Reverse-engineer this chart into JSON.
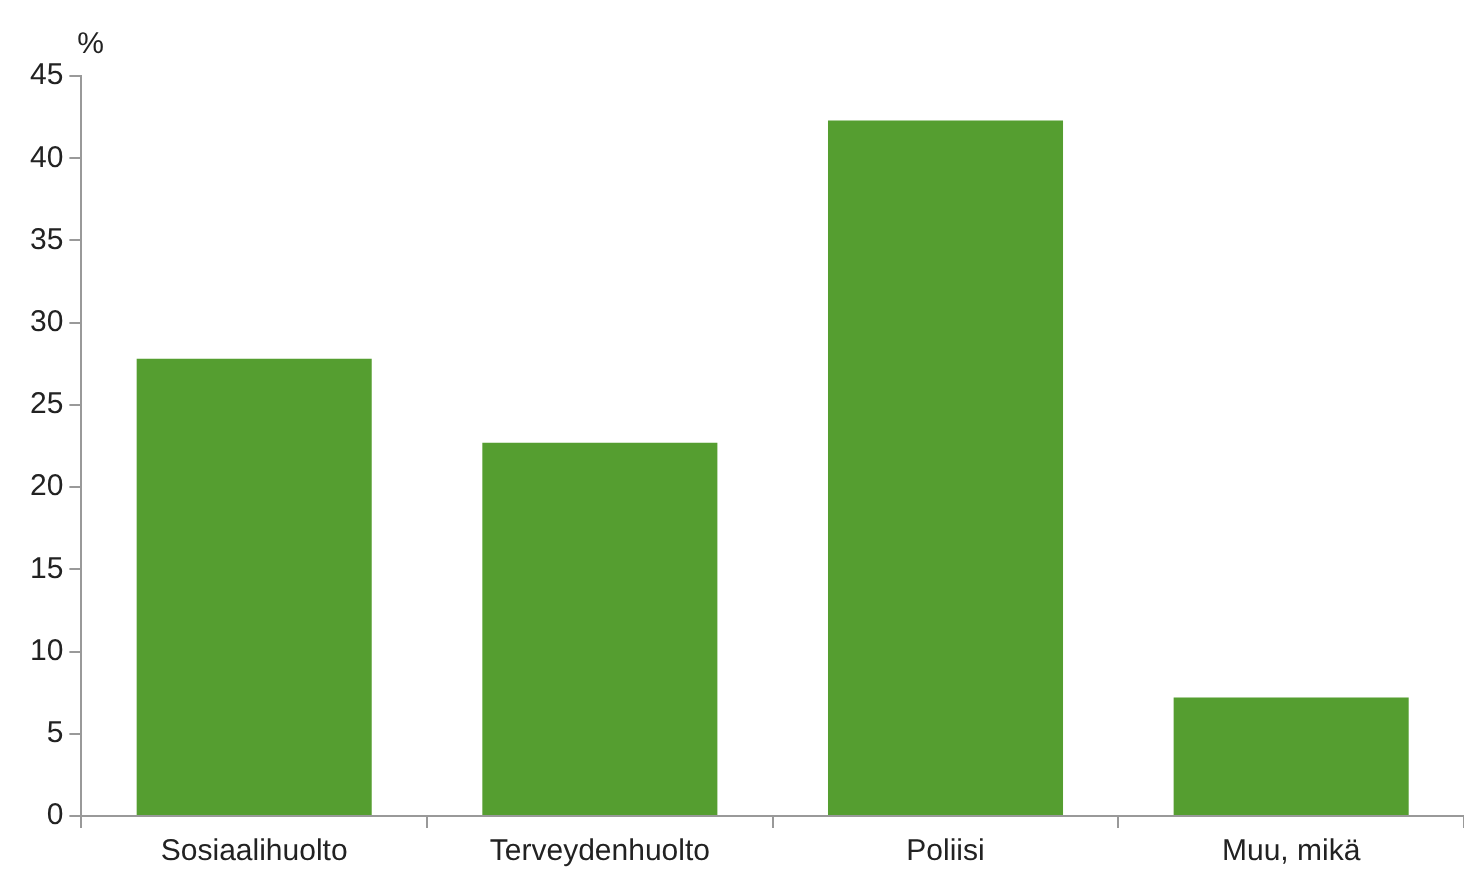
{
  "chart_data": {
    "type": "bar",
    "ylabel": "%",
    "categories": [
      "Sosiaalihuolto",
      "Terveydenhuolto",
      "Poliisi",
      "Muu, mikä"
    ],
    "values": [
      27.8,
      22.7,
      42.3,
      7.2
    ],
    "color": "#559e30",
    "ylim": [
      0,
      45
    ],
    "yticks": [
      0,
      5,
      10,
      15,
      20,
      25,
      30,
      35,
      40,
      45
    ],
    "grid": false
  }
}
